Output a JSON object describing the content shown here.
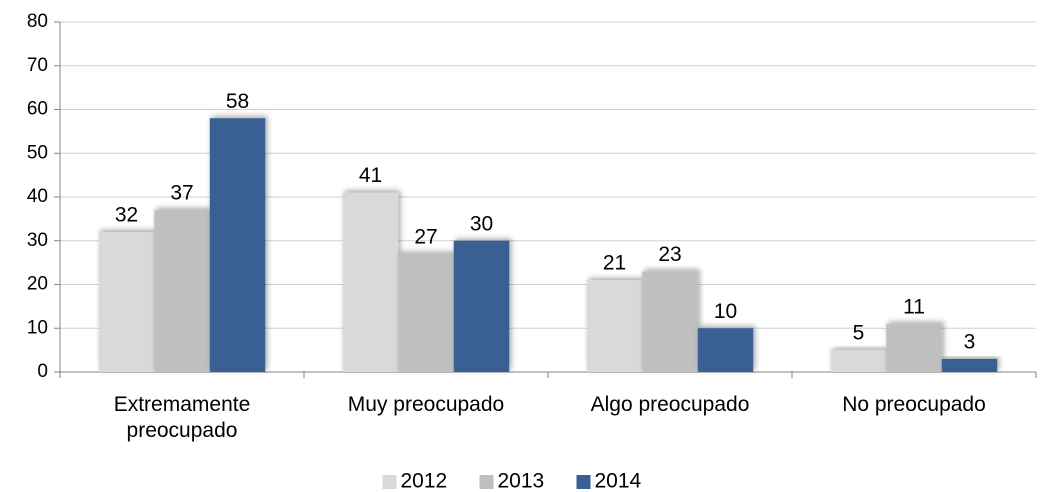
{
  "chart_data": {
    "type": "bar",
    "categories": [
      "Extremamente preocupado",
      "Muy preocupado",
      "Algo preocupado",
      "No preocupado"
    ],
    "series": [
      {
        "name": "2012",
        "color": "#d9d9d9",
        "values": [
          32,
          41,
          21,
          5
        ]
      },
      {
        "name": "2013",
        "color": "#bfbfbf",
        "values": [
          37,
          27,
          23,
          11
        ]
      },
      {
        "name": "2014",
        "color": "#376092",
        "values": [
          58,
          30,
          10,
          3
        ]
      }
    ],
    "ylim": [
      0,
      80
    ],
    "yticks": [
      0,
      10,
      20,
      30,
      40,
      50,
      60,
      70,
      80
    ],
    "grid": true,
    "legend": "bottom"
  }
}
